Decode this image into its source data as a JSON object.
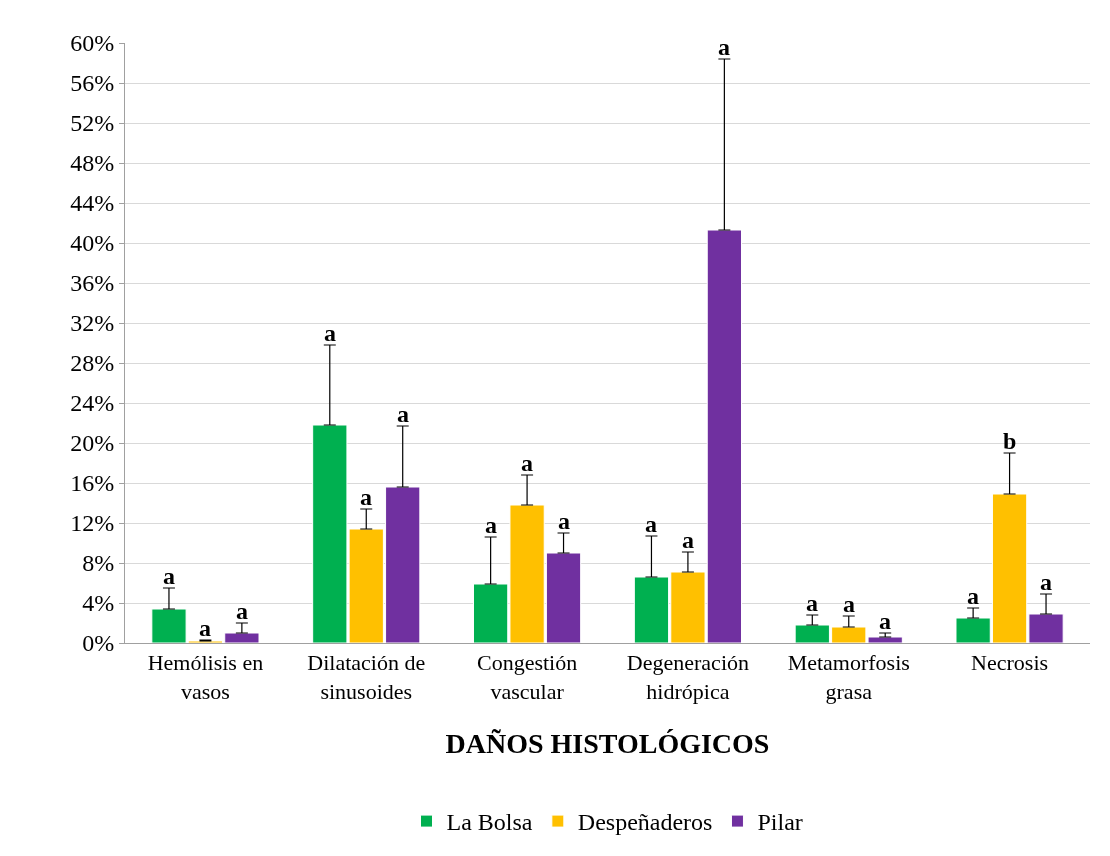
{
  "chart_data": {
    "type": "bar",
    "xlabel": "DAÑOS HISTOLÓGICOS",
    "categories": [
      "Hemólisis en vasos",
      "Dilatación de sinusoides",
      "Congestión vascular",
      "Degeneración hidrópica",
      "Metamorfosis grasa",
      "Necrosis"
    ],
    "series": [
      {
        "name": "La Bolsa",
        "color": "#00b050",
        "values": [
          3.4,
          21.8,
          5.9,
          6.6,
          1.8,
          2.5
        ],
        "errors": [
          [
            3.4,
            5.5
          ],
          [
            21.8,
            29.8
          ],
          [
            5.9,
            10.6
          ],
          [
            6.6,
            10.7
          ],
          [
            1.8,
            2.8
          ],
          [
            2.5,
            3.5
          ]
        ]
      },
      {
        "name": "Despeñaderos",
        "color": "#ffc000",
        "values": [
          0.2,
          11.4,
          13.8,
          7.1,
          1.6,
          14.9
        ],
        "errors": [
          [
            0.2,
            0.3
          ],
          [
            11.4,
            13.4
          ],
          [
            13.8,
            16.8
          ],
          [
            7.1,
            9.1
          ],
          [
            1.6,
            2.7
          ],
          [
            14.9,
            19.0
          ]
        ]
      },
      {
        "name": "Pilar",
        "color": "#7030a0",
        "values": [
          1.0,
          15.6,
          9.0,
          41.3,
          0.6,
          2.9
        ],
        "errors": [
          [
            1.0,
            2.0
          ],
          [
            15.6,
            21.7
          ],
          [
            9.0,
            11.0
          ],
          [
            41.3,
            58.4
          ],
          [
            0.6,
            1.0
          ],
          [
            2.9,
            4.9
          ]
        ]
      }
    ],
    "annotations": [
      "a",
      "a",
      "a",
      "a",
      "a",
      "a",
      "a",
      "a",
      "a",
      "a",
      "a",
      "a",
      "a",
      "a",
      "a",
      "a",
      "b",
      "a"
    ],
    "ylim": [
      0,
      60
    ],
    "yticks": [
      {
        "value": 0,
        "label": "0%"
      },
      {
        "value": 4,
        "label": "4%"
      },
      {
        "value": 8,
        "label": "8%"
      },
      {
        "value": 12,
        "label": "12%"
      },
      {
        "value": 16,
        "label": "16%"
      },
      {
        "value": 20,
        "label": "20%"
      },
      {
        "value": 24,
        "label": "24%"
      },
      {
        "value": 28,
        "label": "28%"
      },
      {
        "value": 32,
        "label": "32%"
      },
      {
        "value": 36,
        "label": "36%"
      },
      {
        "value": 40,
        "label": "40%"
      },
      {
        "value": 44,
        "label": "44%"
      },
      {
        "value": 48,
        "label": "48%"
      },
      {
        "value": 52,
        "label": "52%"
      },
      {
        "value": 56,
        "label": "56%"
      },
      {
        "value": 60,
        "label": "60%"
      }
    ],
    "grid": "y",
    "legend": "bottom"
  }
}
